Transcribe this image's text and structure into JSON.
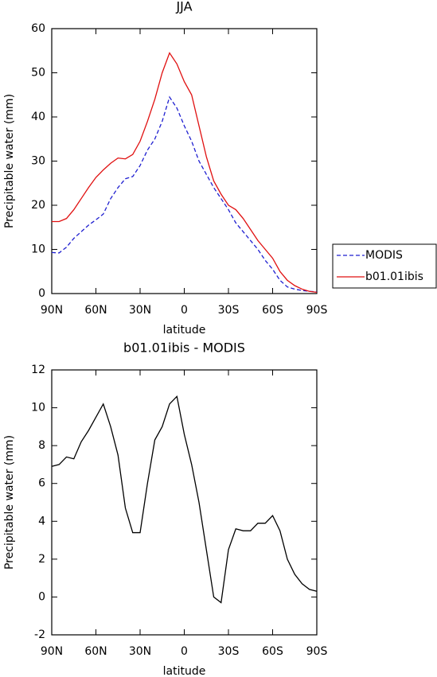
{
  "chart_data": [
    {
      "type": "line",
      "title": "JJA",
      "xlabel": "latitude",
      "ylabel": "Precipitable water (mm)",
      "x": [
        90,
        85,
        80,
        75,
        70,
        65,
        60,
        55,
        50,
        45,
        40,
        35,
        30,
        25,
        20,
        15,
        10,
        5,
        0,
        -5,
        -10,
        -15,
        -20,
        -25,
        -30,
        -35,
        -40,
        -45,
        -50,
        -55,
        -60,
        -65,
        -70,
        -75,
        -80,
        -85,
        -90
      ],
      "series": [
        {
          "name": "MODIS",
          "color": "#1f1fd0",
          "linestyle": "dashed",
          "values": [
            9.3,
            9.2,
            10.5,
            12.5,
            14,
            15.5,
            16.7,
            18,
            21.5,
            24,
            26,
            26.5,
            29,
            32.5,
            35,
            39,
            44.5,
            42,
            38,
            34.5,
            30,
            27,
            24,
            21.5,
            19,
            16,
            14,
            12,
            10,
            7.5,
            5.5,
            3,
            1.5,
            1,
            0.7,
            0.5,
            0.4
          ]
        },
        {
          "name": "b01.01ibis",
          "color": "#e01010",
          "linestyle": "solid",
          "values": [
            16.3,
            16.3,
            17,
            19,
            21.5,
            24,
            26.3,
            28,
            29.5,
            30.7,
            30.5,
            31.5,
            34.5,
            39,
            44,
            50,
            54.5,
            52,
            48,
            45,
            38,
            31,
            25.5,
            22.5,
            20,
            19,
            17,
            14.5,
            12,
            10,
            8,
            5,
            3,
            1.8,
            1,
            0.5,
            0.3
          ]
        }
      ],
      "xlim": [
        90,
        -90
      ],
      "xticks": [
        {
          "value": 90,
          "label": "90N"
        },
        {
          "value": 60,
          "label": "60N"
        },
        {
          "value": 30,
          "label": "30N"
        },
        0,
        {
          "value": -30,
          "label": "30S"
        },
        {
          "value": -60,
          "label": "60S"
        },
        {
          "value": -90,
          "label": "90S"
        }
      ],
      "ylim": [
        0,
        60
      ],
      "yticks": [
        0,
        10,
        20,
        30,
        40,
        50,
        60
      ],
      "legend": "outside-right"
    },
    {
      "type": "line",
      "title": "b01.01ibis - MODIS",
      "xlabel": "latitude",
      "ylabel": "Precipitable water (mm)",
      "x": [
        90,
        85,
        80,
        75,
        70,
        65,
        60,
        55,
        50,
        45,
        40,
        35,
        30,
        25,
        20,
        15,
        10,
        5,
        0,
        -5,
        -10,
        -15,
        -20,
        -25,
        -30,
        -35,
        -40,
        -45,
        -50,
        -55,
        -60,
        -65,
        -70,
        -75,
        -80,
        -85,
        -90
      ],
      "series": [
        {
          "color": "#000000",
          "linestyle": "solid",
          "values": [
            6.9,
            7.0,
            7.4,
            7.3,
            8.2,
            8.8,
            9.5,
            10.2,
            9.0,
            7.5,
            4.7,
            3.4,
            3.4,
            6,
            8.3,
            9.0,
            10.2,
            10.6,
            8.6,
            7,
            5,
            2.5,
            0,
            -0.3,
            2.5,
            3.6,
            3.5,
            3.5,
            3.9,
            3.9,
            4.3,
            3.5,
            2,
            1.2,
            0.7,
            0.4,
            0.3
          ]
        }
      ],
      "xlim": [
        90,
        -90
      ],
      "xticks": [
        {
          "value": 90,
          "label": "90N"
        },
        {
          "value": 60,
          "label": "60N"
        },
        {
          "value": 30,
          "label": "30N"
        },
        0,
        {
          "value": -30,
          "label": "30S"
        },
        {
          "value": -60,
          "label": "60S"
        },
        {
          "value": -90,
          "label": "90S"
        }
      ],
      "ylim": [
        -2,
        12
      ],
      "yticks": [
        -2,
        0,
        2,
        4,
        6,
        8,
        10,
        12
      ]
    }
  ]
}
